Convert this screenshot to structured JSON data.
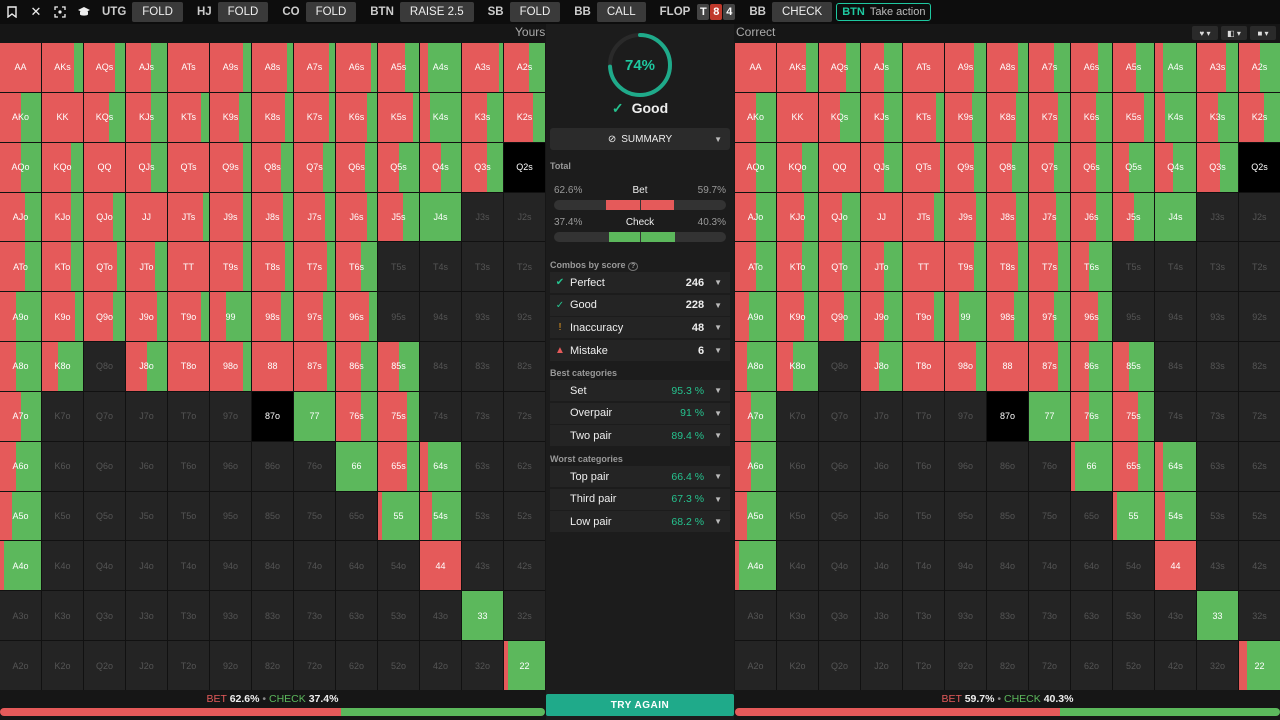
{
  "colors": {
    "bet": "#e55a5a",
    "check": "#5cb85c",
    "accent": "#1ec8a0"
  },
  "toolbar": {
    "actions": [
      {
        "pos": "UTG",
        "action": "FOLD"
      },
      {
        "pos": "HJ",
        "action": "FOLD"
      },
      {
        "pos": "CO",
        "action": "FOLD"
      },
      {
        "pos": "BTN",
        "action": "RAISE 2.5"
      },
      {
        "pos": "SB",
        "action": "FOLD"
      },
      {
        "pos": "BB",
        "action": "CALL"
      }
    ],
    "flop_label": "FLOP",
    "flop_cards": [
      {
        "rank": "T",
        "color": "#444"
      },
      {
        "rank": "8",
        "color": "#c0392b"
      },
      {
        "rank": "4",
        "color": "#444"
      }
    ],
    "bb_label": "BB",
    "bb_action": "CHECK",
    "btn_label": "BTN",
    "take_action": "Take action"
  },
  "yours": {
    "title": "Yours",
    "bet_pct": "62.6%",
    "check_pct": "37.4%",
    "bet": 62.6
  },
  "correct": {
    "title": "Correct",
    "bet_pct": "59.7%",
    "check_pct": "40.3%",
    "bet": 59.7
  },
  "bar_labels": {
    "bet": "BET",
    "check": "CHECK",
    "sep": "•"
  },
  "range": {
    "ranks": [
      "A",
      "K",
      "Q",
      "J",
      "T",
      "9",
      "8",
      "7",
      "6",
      "5",
      "4",
      "3",
      "2"
    ],
    "yours": [
      [
        "100/0",
        "78/22",
        "75/25",
        "60/40",
        "100/0",
        "80/20",
        "85/15",
        "85/15",
        "85/15",
        "65/35",
        "20/80",
        "90/10",
        "60/40"
      ],
      [
        "50/50",
        "100/0",
        "60/40",
        "60/40",
        "80/20",
        "70/30",
        "80/20",
        "85/15",
        "75/25",
        "85/15",
        "25/75",
        "60/40",
        "70/30"
      ],
      [
        "50/50",
        "70/30",
        "100/0",
        "60/40",
        "100/0",
        "80/20",
        "70/30",
        "70/30",
        "70/30",
        "50/50",
        "50/50",
        "60/40",
        "-"
      ],
      [
        "60/40",
        "70/30",
        "70/30",
        "100/0",
        "85/15",
        "80/20",
        "75/25",
        "75/25",
        "75/25",
        "60/40",
        "0/100",
        "",
        ""
      ],
      [
        "60/40",
        "70/30",
        "80/20",
        "70/30",
        "100/0",
        "80/20",
        "80/20",
        "80/20",
        "60/40",
        "",
        "",
        "",
        ""
      ],
      [
        "40/60",
        "80/20",
        "70/30",
        "75/25",
        "80/20",
        "40/60",
        "70/30",
        "70/30",
        "80/20",
        "",
        "",
        "",
        ""
      ],
      [
        "40/60",
        "40/60",
        "",
        "50/50",
        "100/0",
        "80/20",
        "100/0",
        "80/20",
        "60/40",
        "50/50",
        "",
        "",
        ""
      ],
      [
        "50/50",
        "",
        "",
        "",
        "",
        "",
        "-",
        "0/100",
        "60/40",
        "70/30",
        "",
        "",
        ""
      ],
      [
        "40/60",
        "",
        "",
        "",
        "",
        "",
        "",
        "",
        "0/100",
        "70/30",
        "20/80",
        "",
        ""
      ],
      [
        "30/70",
        "",
        "",
        "",
        "",
        "",
        "",
        "",
        "",
        "10/90",
        "30/70",
        "",
        ""
      ],
      [
        "10/90",
        "",
        "",
        "",
        "",
        "",
        "",
        "",
        "",
        "",
        "100/0",
        "",
        ""
      ],
      [
        "",
        "",
        "",
        "",
        "",
        "",
        "",
        "",
        "",
        "",
        "",
        "0/100",
        ""
      ],
      [
        "",
        "",
        "",
        "",
        "",
        "",
        "",
        "",
        "",
        "",
        "",
        "",
        "10/90"
      ]
    ],
    "correct": [
      [
        "100/0",
        "70/30",
        "65/35",
        "55/45",
        "100/0",
        "70/30",
        "75/25",
        "60/40",
        "65/35",
        "55/45",
        "20/80",
        "70/30",
        "50/50"
      ],
      [
        "50/50",
        "100/0",
        "50/50",
        "55/45",
        "80/20",
        "65/35",
        "70/30",
        "70/30",
        "60/40",
        "75/25",
        "25/75",
        "50/50",
        "60/40"
      ],
      [
        "50/50",
        "60/40",
        "100/0",
        "55/45",
        "90/10",
        "70/30",
        "60/40",
        "60/40",
        "60/40",
        "40/60",
        "45/55",
        "55/45",
        "-"
      ],
      [
        "50/50",
        "65/35",
        "55/45",
        "100/0",
        "75/25",
        "75/25",
        "70/30",
        "65/35",
        "60/40",
        "50/50",
        "0/100",
        "",
        ""
      ],
      [
        "50/50",
        "60/40",
        "55/45",
        "55/45",
        "100/0",
        "70/30",
        "75/25",
        "70/30",
        "45/55",
        "",
        "",
        "",
        ""
      ],
      [
        "35/65",
        "65/35",
        "60/40",
        "55/45",
        "75/25",
        "35/65",
        "65/35",
        "60/40",
        "65/35",
        "",
        "",
        "",
        ""
      ],
      [
        "30/70",
        "40/60",
        "",
        "45/55",
        "100/0",
        "75/25",
        "100/0",
        "70/30",
        "45/55",
        "40/60",
        "",
        "",
        ""
      ],
      [
        "40/60",
        "",
        "",
        "",
        "",
        "",
        "-",
        "0/100",
        "45/55",
        "60/40",
        "",
        "",
        ""
      ],
      [
        "40/60",
        "",
        "",
        "",
        "",
        "",
        "",
        "",
        "10/90",
        "60/40",
        "20/80",
        "",
        ""
      ],
      [
        "30/70",
        "",
        "",
        "",
        "",
        "",
        "",
        "",
        "",
        "10/90",
        "25/75",
        "",
        ""
      ],
      [
        "10/90",
        "",
        "",
        "",
        "",
        "",
        "",
        "",
        "",
        "",
        "100/0",
        "",
        ""
      ],
      [
        "",
        "",
        "",
        "",
        "",
        "",
        "",
        "",
        "",
        "",
        "",
        "0/100",
        ""
      ],
      [
        "",
        "",
        "",
        "",
        "",
        "",
        "",
        "",
        "",
        "",
        "",
        "",
        "20/80"
      ]
    ]
  },
  "center": {
    "score": "74%",
    "score_value": 74,
    "grade": "Good",
    "summary_label": "SUMMARY",
    "total_label": "Total",
    "bet": {
      "label": "Bet",
      "yours": "62.6%",
      "correct": "59.7%"
    },
    "check": {
      "label": "Check",
      "yours": "37.4%",
      "correct": "40.3%"
    },
    "combos_label": "Combos by score",
    "combos": [
      {
        "name": "Perfect",
        "value": "246",
        "icon": "✔",
        "color": "#25c28e"
      },
      {
        "name": "Good",
        "value": "228",
        "icon": "✓",
        "color": "#25c28e"
      },
      {
        "name": "Inaccuracy",
        "value": "48",
        "icon": "!",
        "color": "#f0a020"
      },
      {
        "name": "Mistake",
        "value": "6",
        "icon": "▲",
        "color": "#e55a5a"
      }
    ],
    "best_label": "Best categories",
    "best": [
      {
        "name": "Set",
        "pct": "95.3 %"
      },
      {
        "name": "Overpair",
        "pct": "91 %"
      },
      {
        "name": "Two pair",
        "pct": "89.4 %"
      }
    ],
    "worst_label": "Worst categories",
    "worst": [
      {
        "name": "Top pair",
        "pct": "66.4 %"
      },
      {
        "name": "Third pair",
        "pct": "67.3 %"
      },
      {
        "name": "Low pair",
        "pct": "68.2 %"
      }
    ],
    "try_again": "TRY AGAIN"
  }
}
